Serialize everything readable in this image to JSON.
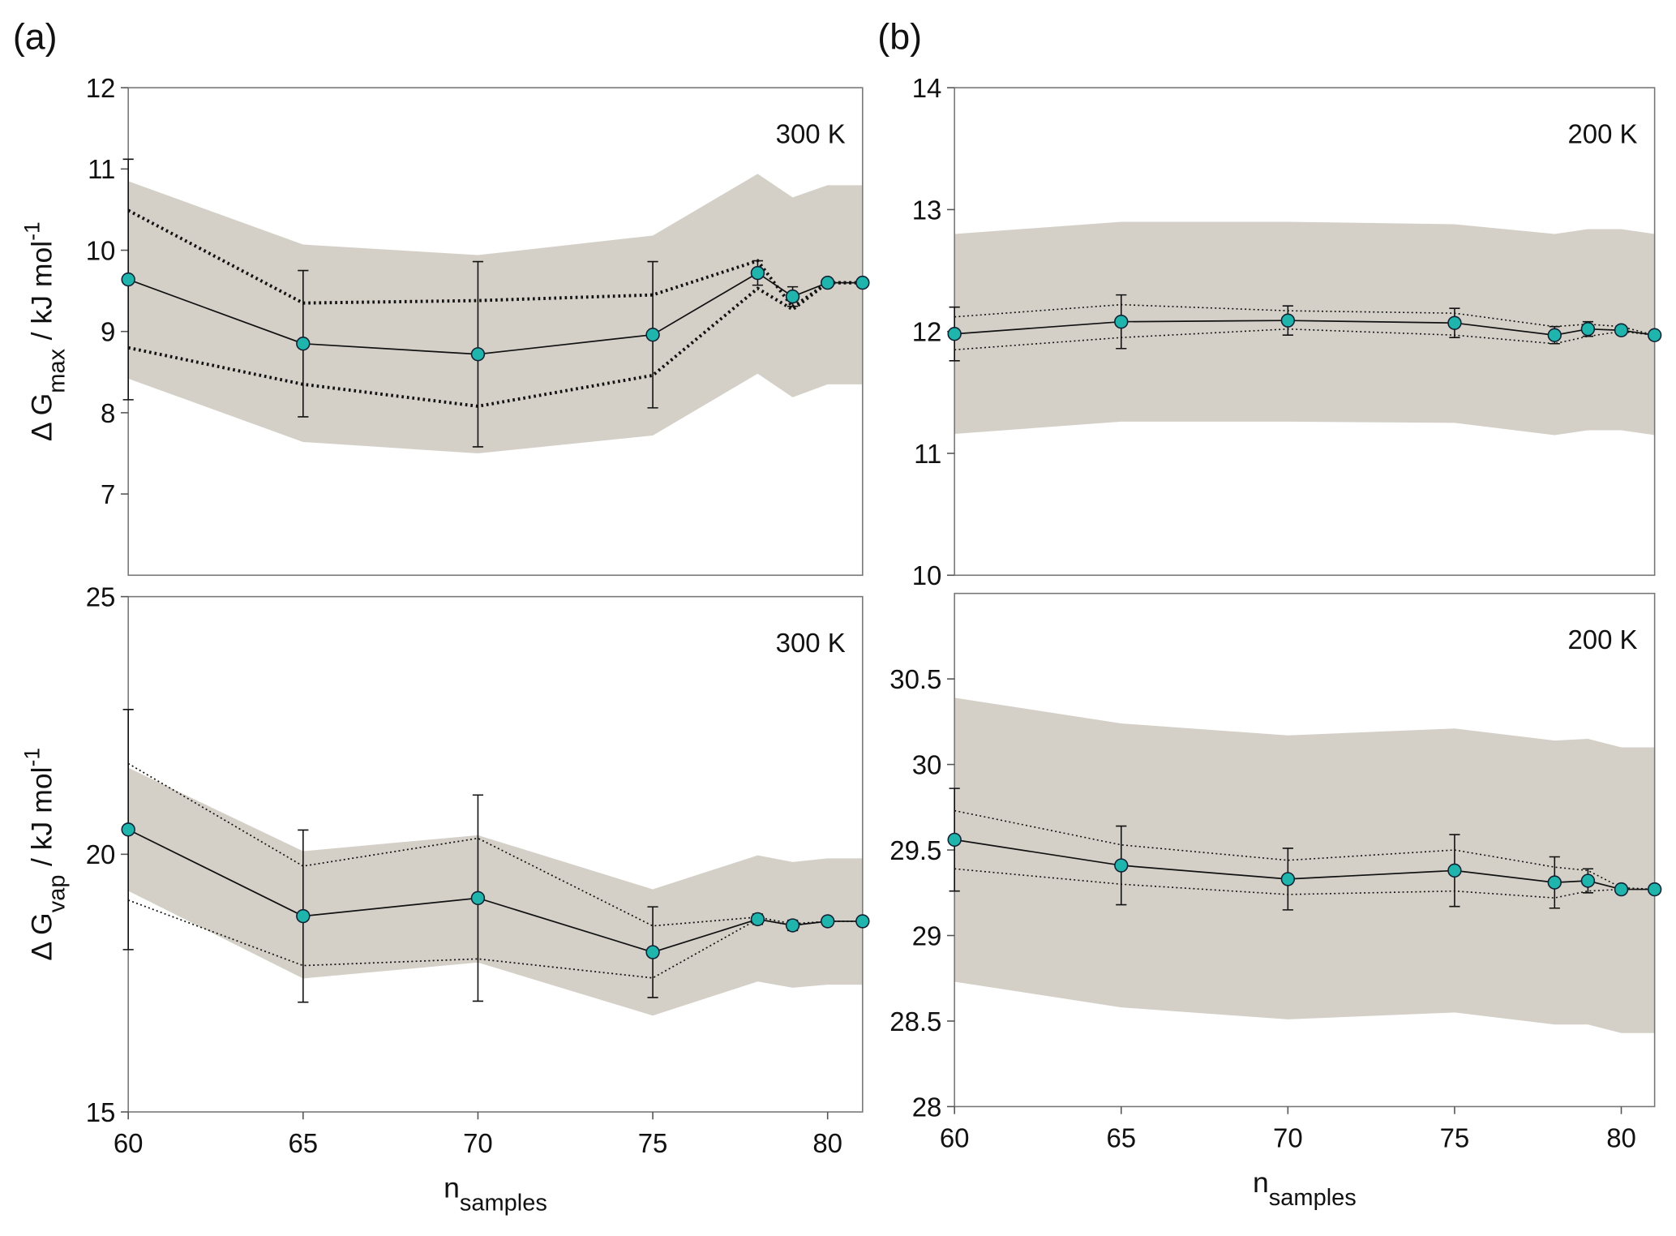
{
  "chart_data": [
    {
      "type": "line",
      "panel_label": "(a)",
      "annotation": "300 K",
      "ylabel": {
        "symbol": "Δ G",
        "sub": "max",
        "unit": "/ kJ mol",
        "sup": "-1"
      },
      "x": [
        60,
        65,
        70,
        75,
        78,
        79,
        80,
        81
      ],
      "xlim": [
        60,
        81
      ],
      "ylim": [
        6,
        12
      ],
      "yticks": [
        7,
        8,
        9,
        10,
        11,
        12
      ],
      "marker_color": "#1fb5ad",
      "band_color": "#d4d0c8",
      "values": [
        9.64,
        8.85,
        8.72,
        8.96,
        9.72,
        9.43,
        9.6,
        9.6
      ],
      "errors": [
        1.48,
        0.9,
        1.14,
        0.9,
        0.15,
        0.12,
        0,
        0
      ],
      "bounds": {
        "upper": [
          10.49,
          9.35,
          9.38,
          9.45,
          9.87,
          9.3,
          9.6,
          9.6
        ],
        "lower": [
          8.8,
          8.35,
          8.08,
          8.46,
          9.53,
          9.27,
          9.6,
          9.6
        ]
      },
      "band": {
        "upper": [
          10.85,
          10.07,
          9.94,
          10.18,
          10.94,
          10.65,
          10.8,
          10.8
        ],
        "lower": [
          8.42,
          7.64,
          7.5,
          7.72,
          8.48,
          8.19,
          8.35,
          8.35
        ]
      }
    },
    {
      "type": "line",
      "annotation": "300 K",
      "ylabel": {
        "symbol": "Δ G",
        "sub": "vap",
        "unit": "/ kJ mol",
        "sup": "-1"
      },
      "xlabel": {
        "symbol": "n",
        "sub": "samples"
      },
      "x": [
        60,
        65,
        70,
        75,
        78,
        79,
        80,
        81
      ],
      "xlim": [
        60,
        81
      ],
      "xticks": [
        60,
        65,
        70,
        75,
        80
      ],
      "ylim": [
        15,
        25
      ],
      "yticks": [
        15,
        20,
        25
      ],
      "marker_color": "#1fb5ad",
      "band_color": "#d4d0c8",
      "values": [
        20.48,
        18.8,
        19.15,
        18.1,
        18.74,
        18.62,
        18.7,
        18.7
      ],
      "errors": [
        2.33,
        1.67,
        2.0,
        0.88,
        0.1,
        0.1,
        0,
        0
      ],
      "bounds": {
        "upper": [
          21.76,
          19.77,
          20.31,
          18.61,
          18.78,
          18.65,
          18.7,
          18.7
        ],
        "lower": [
          19.11,
          17.84,
          17.97,
          17.6,
          18.74,
          18.62,
          18.7,
          18.7
        ]
      },
      "band": {
        "upper": [
          21.68,
          20.06,
          20.37,
          19.32,
          19.98,
          19.85,
          19.92,
          19.92
        ],
        "lower": [
          19.29,
          17.59,
          17.9,
          16.87,
          17.53,
          17.41,
          17.47,
          17.47
        ]
      }
    },
    {
      "type": "line",
      "panel_label": "(b)",
      "annotation": "200 K",
      "x": [
        60,
        65,
        70,
        75,
        78,
        79,
        80,
        81
      ],
      "xlim": [
        60,
        81
      ],
      "ylim": [
        10,
        14
      ],
      "yticks": [
        10,
        11,
        12,
        13,
        14
      ],
      "marker_color": "#1fb5ad",
      "band_color": "#d4d0c8",
      "values": [
        11.98,
        12.08,
        12.09,
        12.07,
        11.97,
        12.02,
        12.01,
        11.97
      ],
      "errors": [
        0.22,
        0.22,
        0.12,
        0.12,
        0.07,
        0.06,
        0,
        0
      ],
      "bounds": {
        "upper": [
          12.12,
          12.22,
          12.17,
          12.15,
          12.04,
          12.06,
          12.04,
          11.97
        ],
        "lower": [
          11.85,
          11.95,
          12.02,
          11.97,
          11.9,
          11.96,
          12.0,
          11.97
        ]
      },
      "band": {
        "upper": [
          12.8,
          12.9,
          12.9,
          12.88,
          12.8,
          12.84,
          12.84,
          12.8
        ],
        "lower": [
          11.16,
          11.26,
          11.26,
          11.25,
          11.15,
          11.19,
          11.19,
          11.15
        ]
      }
    },
    {
      "type": "line",
      "annotation": "200 K",
      "xlabel": {
        "symbol": "n",
        "sub": "samples"
      },
      "x": [
        60,
        65,
        70,
        75,
        78,
        79,
        80,
        81
      ],
      "xlim": [
        60,
        81
      ],
      "xticks": [
        60,
        65,
        70,
        75,
        80
      ],
      "ylim": [
        28,
        31
      ],
      "yticks": [
        28,
        28.5,
        29,
        29.5,
        30,
        30.5
      ],
      "marker_color": "#1fb5ad",
      "band_color": "#d4d0c8",
      "values": [
        29.56,
        29.41,
        29.33,
        29.38,
        29.31,
        29.32,
        29.27,
        29.27
      ],
      "errors": [
        0.3,
        0.23,
        0.18,
        0.21,
        0.15,
        0.07,
        0,
        0
      ],
      "bounds": {
        "upper": [
          29.73,
          29.53,
          29.44,
          29.5,
          29.4,
          29.38,
          29.28,
          29.27
        ],
        "lower": [
          29.39,
          29.3,
          29.24,
          29.26,
          29.22,
          29.26,
          29.27,
          29.27
        ]
      },
      "band": {
        "upper": [
          30.39,
          30.24,
          30.17,
          30.21,
          30.14,
          30.15,
          30.1,
          30.1
        ],
        "lower": [
          28.73,
          28.58,
          28.51,
          28.55,
          28.48,
          28.48,
          28.43,
          28.43
        ]
      }
    }
  ]
}
